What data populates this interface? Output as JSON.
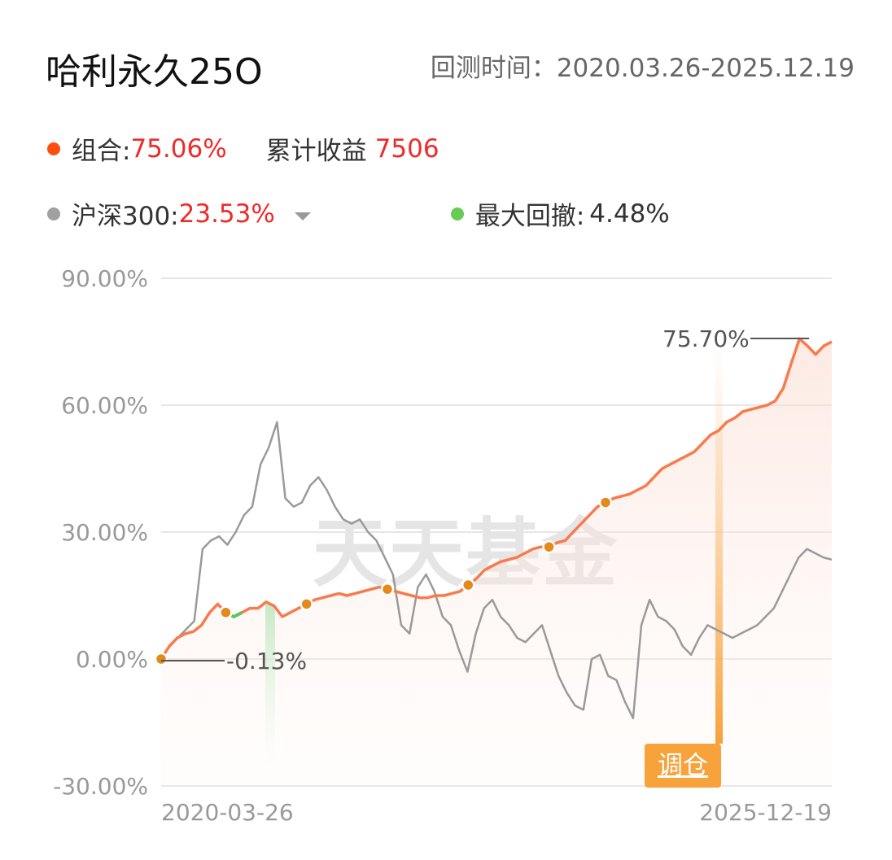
{
  "header": {
    "title": "哈利永久25O",
    "period": "回测时间：2020.03.26-2025.12.19"
  },
  "legend": {
    "portfolio_label": "组合:",
    "portfolio_value": "75.06%",
    "cum_label": "累计收益",
    "cum_value": "7506",
    "benchmark_label": "沪深300:",
    "benchmark_value": "23.53%",
    "drawdown_label": "最大回撤:",
    "drawdown_value": "4.48%"
  },
  "colors": {
    "portfolio": "#ff5a1f",
    "portfolio_line": "#f97a4c",
    "benchmark": "#9a9a9a",
    "drawdown": "#5ec45e",
    "rebalance": "#f7a23a",
    "marker": "#e28a1b"
  },
  "watermark": "天天基金",
  "rebalance_label": "调仓",
  "chart_data": {
    "type": "line",
    "y_ticks": [
      "90.00%",
      "60.00%",
      "30.00%",
      "0.00%",
      "-30.00%"
    ],
    "ylim": [
      -30,
      90
    ],
    "x_labels": [
      "2020-03-26",
      "2025-12-19"
    ],
    "annotations": {
      "max_label": "75.70%",
      "min_label": "-0.13%"
    },
    "series": [
      {
        "name": "组合",
        "values": [
          0,
          3,
          5,
          6,
          6.5,
          8,
          11,
          13,
          11,
          10,
          11,
          12,
          12,
          13.5,
          12.5,
          10,
          11,
          12,
          13,
          14,
          14.5,
          15,
          15.5,
          15,
          15.5,
          16,
          16.5,
          17,
          16.5,
          16,
          15.5,
          15,
          14.5,
          14.5,
          15,
          15,
          15.5,
          16,
          17.5,
          19,
          21,
          22,
          23,
          23.5,
          24,
          25,
          26,
          26.5,
          26.5,
          27.5,
          28,
          30,
          32,
          34,
          36,
          37,
          38,
          38.5,
          39,
          40,
          41,
          43,
          45,
          46,
          47,
          48,
          49,
          51,
          53,
          54,
          56,
          57,
          58.5,
          59,
          59.5,
          60,
          61,
          64,
          70,
          75.7,
          74,
          72,
          74,
          75
        ]
      },
      {
        "name": "沪深300",
        "values": [
          0,
          3,
          5,
          7,
          9,
          26,
          28,
          29,
          27,
          30,
          34,
          36,
          46,
          50,
          56,
          38,
          36,
          37,
          41,
          43,
          40,
          36,
          33,
          32,
          33,
          30,
          28,
          24,
          20,
          8,
          6,
          17,
          20,
          16,
          10,
          8,
          2,
          -3,
          6,
          12,
          14,
          10,
          8,
          5,
          4,
          6,
          8,
          2,
          -4,
          -8,
          -11,
          -12,
          0,
          1,
          -4,
          -5,
          -10,
          -14,
          8,
          14,
          10,
          9,
          7,
          3,
          1,
          5,
          8,
          7,
          6,
          5,
          6,
          7,
          8,
          10,
          12,
          16,
          20,
          24,
          26,
          25,
          24,
          23.5
        ]
      }
    ]
  }
}
